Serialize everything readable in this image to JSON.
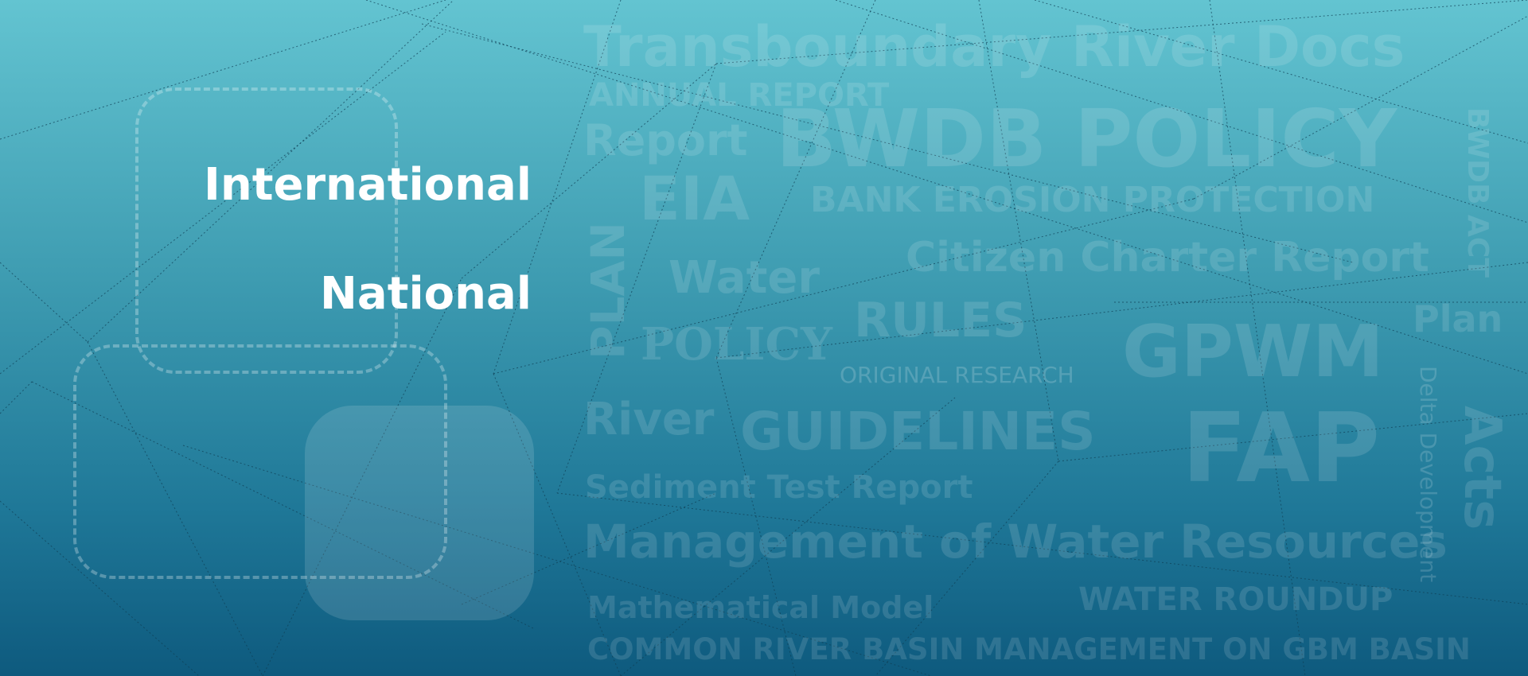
{
  "nav": {
    "international_label": "International",
    "national_label": "National"
  },
  "word_cloud": [
    "Transboundary River Docs",
    "ANNUAL REPORT",
    "Report",
    "BWDB POLICY",
    "EIA",
    "BANK EROSION PROTECTION",
    "PLAN",
    "Water",
    "Citizen Charter Report",
    "RULES",
    "POLICY",
    "ORIGINAL RESEARCH",
    "GPWM",
    "Plan",
    "BWDB ACT",
    "River",
    "GUIDELINES",
    "FAP",
    "Delta Development",
    "Acts",
    "Sediment Test Report",
    "Management of Water Resources",
    "Mathematical Model",
    "WATER ROUNDUP",
    "COMMON RIVER BASIN MANAGEMENT ON GBM BASIN"
  ],
  "colors": {
    "gradient_top": "#63c4d1",
    "gradient_bottom": "#0e5a7e",
    "nav_text": "#ffffff"
  }
}
